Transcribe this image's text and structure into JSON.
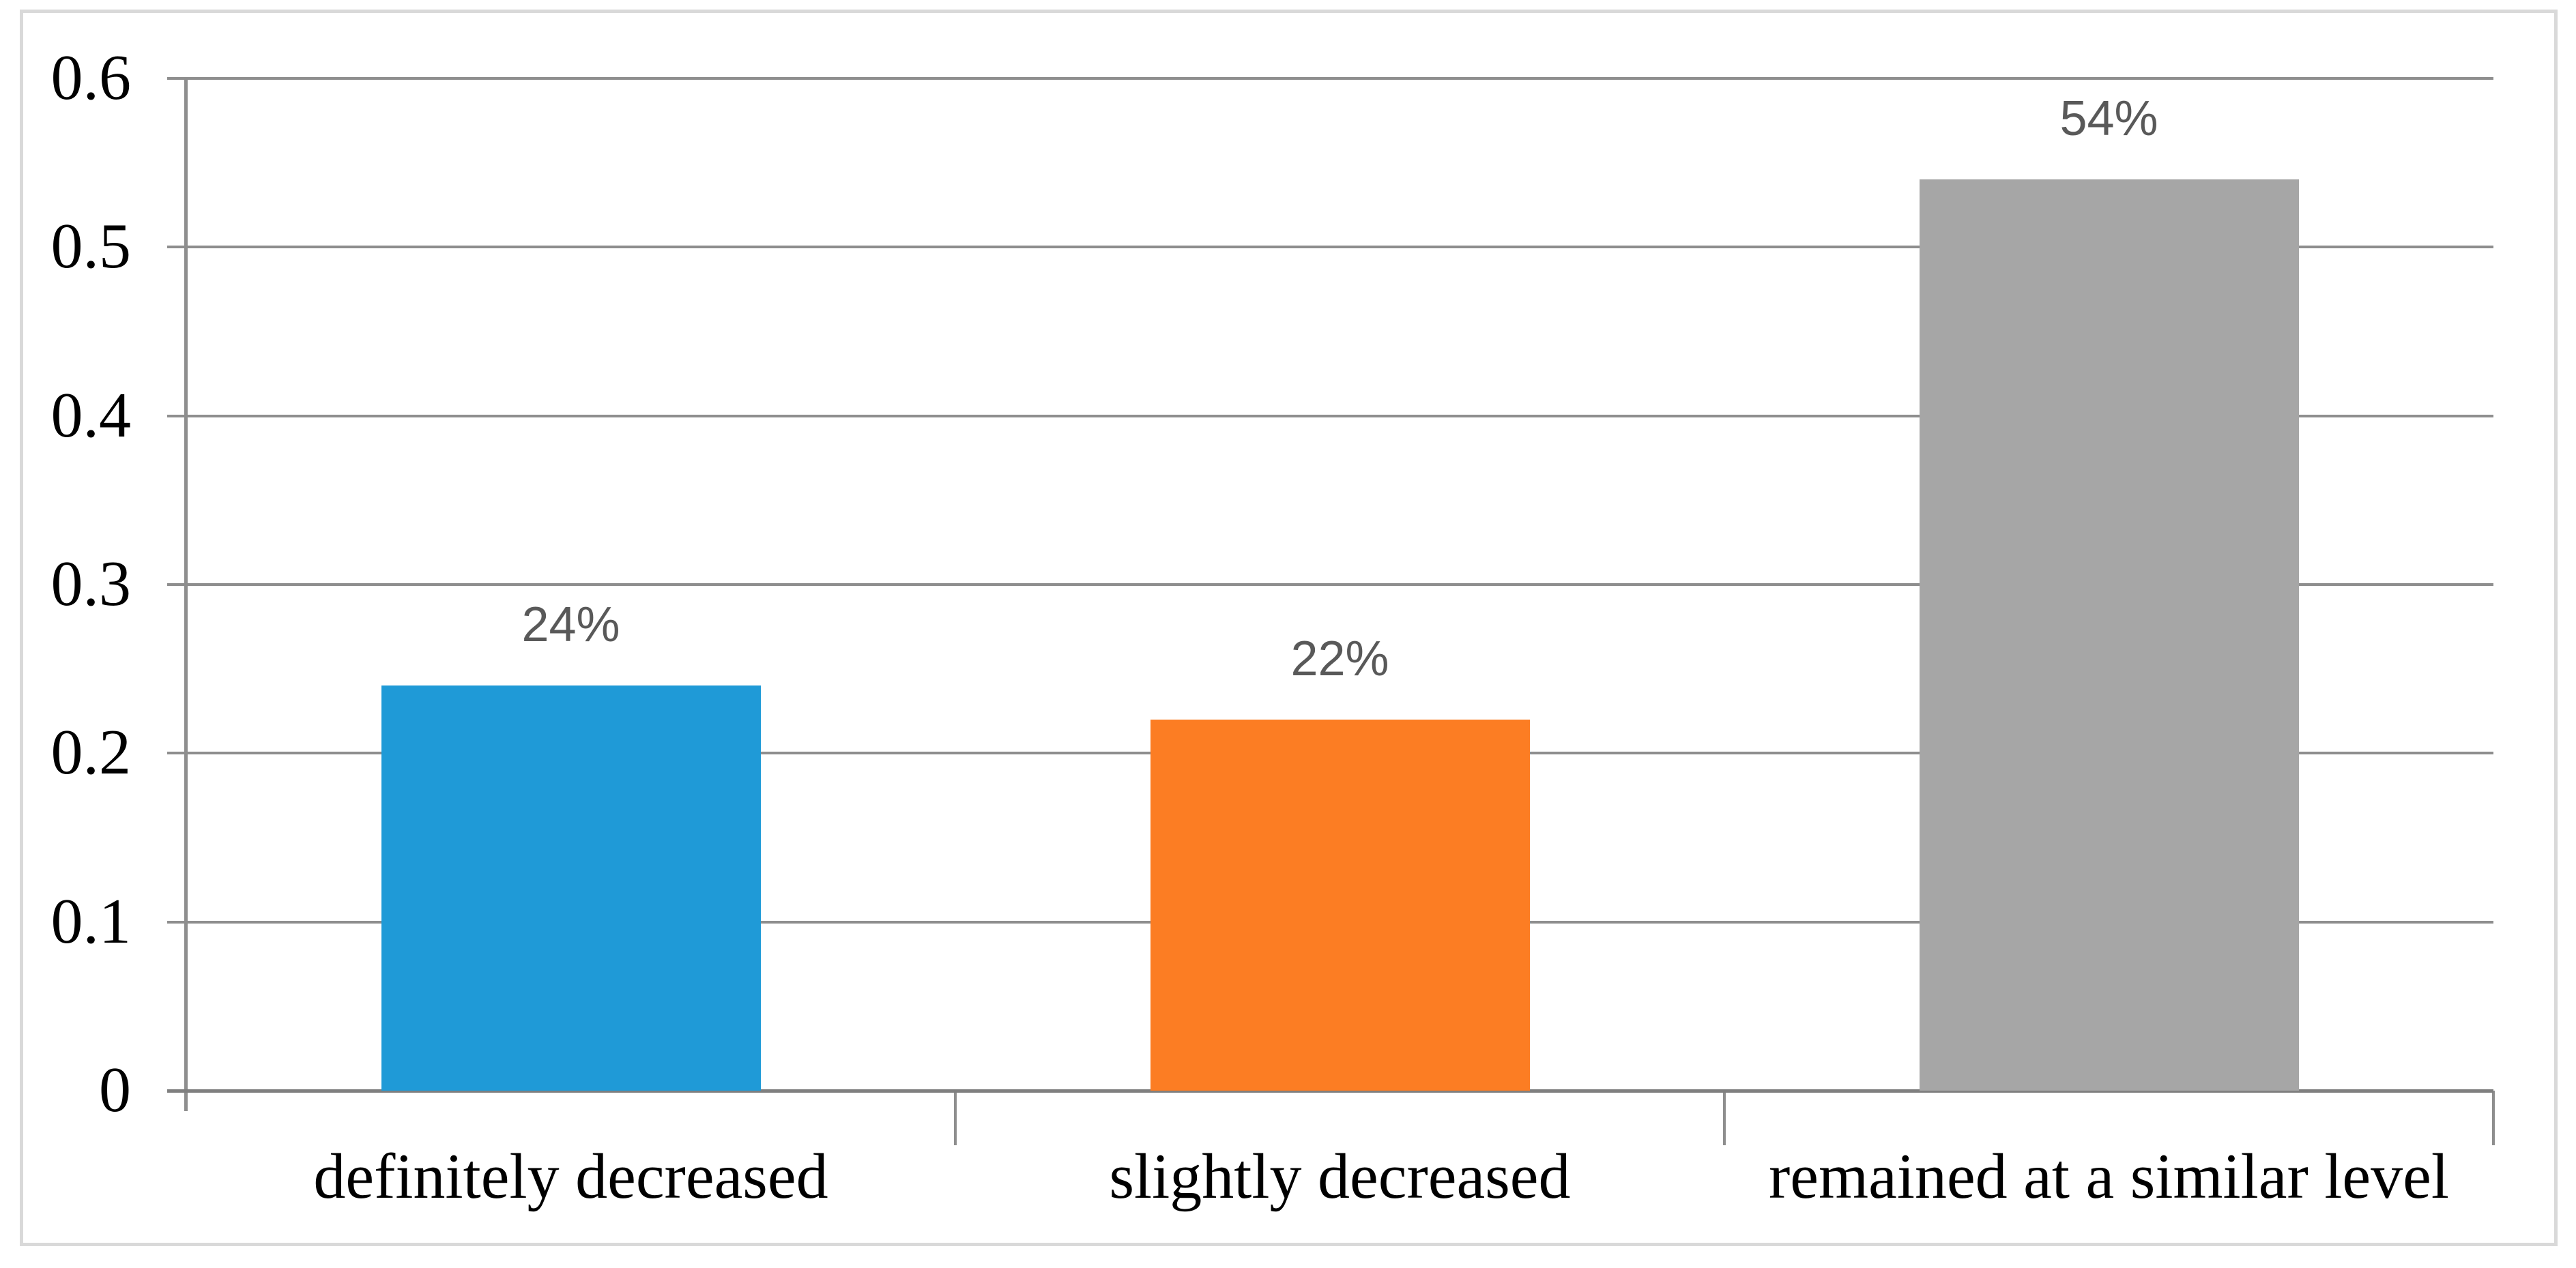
{
  "chart_data": {
    "type": "bar",
    "title": "",
    "xlabel": "",
    "ylabel": "",
    "categories": [
      "definitely decreased",
      "slightly decreased",
      "remained at a similar level"
    ],
    "values": [
      0.24,
      0.22,
      0.54
    ],
    "data_labels": [
      "24%",
      "22%",
      "54%"
    ],
    "ylim": [
      0,
      0.6
    ],
    "ytick_labels": [
      "0",
      "0.1",
      "0.2",
      "0.3",
      "0.4",
      "0.5",
      "0.6"
    ],
    "grid": true,
    "legend": "none",
    "bar_colors": [
      "#1F9AD7",
      "#FC7D23",
      "#A6A6A6"
    ],
    "data_label_color": "#595959",
    "gridline_color": "#8E8E8E",
    "axis_color": "#7F7F7F",
    "frame_border_color": "#D9D9D9"
  }
}
